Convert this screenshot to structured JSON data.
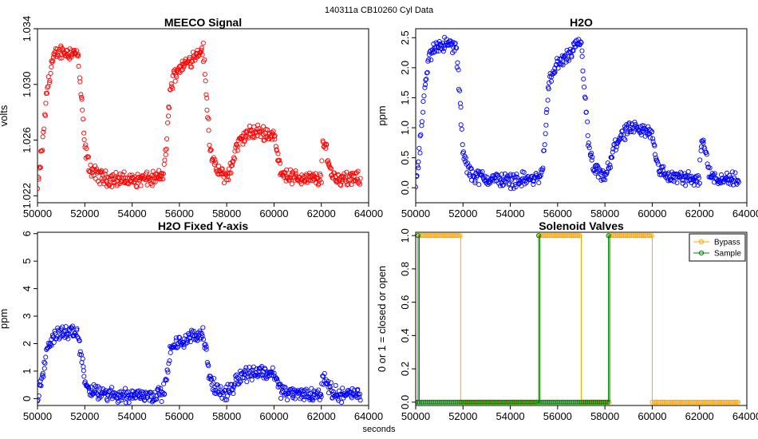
{
  "figure": {
    "suptitle": "140311a    CB10260   Cyl Data",
    "xlabel": "seconds"
  },
  "chart_data": [
    {
      "type": "scatter",
      "title": "MEECO Signal",
      "xlabel": "",
      "ylabel": "volts",
      "color": "#ff0000",
      "xlim": [
        50000,
        64000
      ],
      "ylim": [
        1.0215,
        1.034
      ],
      "xticks": [
        50000,
        52000,
        54000,
        56000,
        58000,
        60000,
        62000,
        64000
      ],
      "yticks": [
        1.022,
        1.026,
        1.03,
        1.034
      ],
      "ytick_labels": [
        "1.022",
        "1.026",
        "1.030",
        "1.034"
      ],
      "x": [
        50000,
        50200,
        50400,
        50600,
        50800,
        51000,
        51200,
        51500,
        51700,
        51850,
        52000,
        52200,
        52500,
        53000,
        53500,
        54000,
        54500,
        55000,
        55300,
        55450,
        55600,
        55800,
        56000,
        56300,
        56600,
        56900,
        57000,
        57150,
        57300,
        57500,
        57800,
        58000,
        58200,
        58400,
        58700,
        59000,
        59300,
        59600,
        60000,
        60150,
        60300,
        60600,
        61000,
        61500,
        62000,
        62050,
        62200,
        62350,
        62500,
        62700,
        63000,
        63300,
        63650
      ],
      "y": [
        1.0225,
        1.0255,
        1.0295,
        1.0315,
        1.0322,
        1.0324,
        1.0323,
        1.0323,
        1.0322,
        1.029,
        1.0255,
        1.024,
        1.0235,
        1.0232,
        1.0232,
        1.0231,
        1.0232,
        1.0232,
        1.0235,
        1.0255,
        1.0295,
        1.0308,
        1.0312,
        1.0315,
        1.032,
        1.0325,
        1.0325,
        1.029,
        1.0255,
        1.024,
        1.0235,
        1.0234,
        1.024,
        1.0255,
        1.0262,
        1.0265,
        1.0266,
        1.0265,
        1.0264,
        1.0248,
        1.0238,
        1.0234,
        1.0233,
        1.0232,
        1.0232,
        1.0255,
        1.0256,
        1.024,
        1.0234,
        1.0233,
        1.0232,
        1.0232,
        1.0232
      ]
    },
    {
      "type": "scatter",
      "title": "H2O",
      "xlabel": "",
      "ylabel": "ppm",
      "color": "#0000ff",
      "xlim": [
        50000,
        64000
      ],
      "ylim": [
        -0.25,
        2.65
      ],
      "xticks": [
        50000,
        52000,
        54000,
        56000,
        58000,
        60000,
        62000,
        64000
      ],
      "yticks": [
        0.0,
        0.5,
        1.0,
        1.5,
        2.0,
        2.5
      ],
      "ytick_labels": [
        "0.0",
        "0.5",
        "1.0",
        "1.5",
        "2.0",
        "2.5"
      ],
      "x": [
        50000,
        50200,
        50400,
        50600,
        50800,
        51000,
        51200,
        51500,
        51700,
        51850,
        52000,
        52200,
        52500,
        53000,
        53500,
        54000,
        54500,
        55000,
        55300,
        55450,
        55600,
        55800,
        56000,
        56300,
        56600,
        56900,
        57000,
        57150,
        57300,
        57500,
        57800,
        58000,
        58200,
        58400,
        58700,
        59000,
        59300,
        59600,
        60000,
        60150,
        60300,
        60600,
        61000,
        61500,
        62000,
        62050,
        62200,
        62350,
        62500,
        62700,
        63000,
        63300,
        63650
      ],
      "y": [
        0.05,
        0.8,
        1.7,
        2.2,
        2.35,
        2.4,
        2.38,
        2.38,
        2.35,
        1.6,
        0.6,
        0.3,
        0.2,
        0.15,
        0.14,
        0.12,
        0.14,
        0.14,
        0.2,
        0.7,
        1.65,
        1.95,
        2.05,
        2.15,
        2.25,
        2.4,
        2.4,
        1.6,
        0.7,
        0.35,
        0.2,
        0.18,
        0.35,
        0.7,
        0.88,
        0.95,
        0.97,
        0.95,
        0.92,
        0.55,
        0.3,
        0.2,
        0.17,
        0.15,
        0.15,
        0.7,
        0.75,
        0.35,
        0.2,
        0.17,
        0.15,
        0.14,
        0.14
      ]
    },
    {
      "type": "scatter",
      "title": "H2O Fixed Y-axis",
      "xlabel": "",
      "ylabel": "ppm",
      "color": "#0000ff",
      "xlim": [
        50000,
        64000
      ],
      "ylim": [
        -0.25,
        6.05
      ],
      "xticks": [
        50000,
        52000,
        54000,
        56000,
        58000,
        60000,
        62000,
        64000
      ],
      "yticks": [
        0,
        1,
        2,
        3,
        4,
        5,
        6
      ],
      "ytick_labels": [
        "0",
        "1",
        "2",
        "3",
        "4",
        "5",
        "6"
      ],
      "x": [
        50000,
        50200,
        50400,
        50600,
        50800,
        51000,
        51200,
        51500,
        51700,
        51850,
        52000,
        52200,
        52500,
        53000,
        53500,
        54000,
        54500,
        55000,
        55300,
        55450,
        55600,
        55800,
        56000,
        56300,
        56600,
        56900,
        57000,
        57150,
        57300,
        57500,
        57800,
        58000,
        58200,
        58400,
        58700,
        59000,
        59300,
        59600,
        60000,
        60150,
        60300,
        60600,
        61000,
        61500,
        62000,
        62050,
        62200,
        62350,
        62500,
        62700,
        63000,
        63300,
        63650
      ],
      "y": [
        0.05,
        0.8,
        1.7,
        2.2,
        2.35,
        2.4,
        2.38,
        2.38,
        2.35,
        1.6,
        0.6,
        0.3,
        0.2,
        0.15,
        0.14,
        0.12,
        0.14,
        0.14,
        0.2,
        0.7,
        1.65,
        1.95,
        2.05,
        2.15,
        2.25,
        2.4,
        2.4,
        1.6,
        0.7,
        0.35,
        0.2,
        0.18,
        0.35,
        0.7,
        0.88,
        0.95,
        0.97,
        0.95,
        0.92,
        0.55,
        0.3,
        0.2,
        0.17,
        0.15,
        0.15,
        0.7,
        0.75,
        0.35,
        0.2,
        0.17,
        0.15,
        0.14,
        0.14
      ]
    },
    {
      "type": "line",
      "title": "Solenoid Valves",
      "xlabel": "",
      "ylabel": "0 or 1 = closed or open",
      "xlim": [
        50000,
        64000
      ],
      "ylim": [
        -0.02,
        1.02
      ],
      "xticks": [
        50000,
        52000,
        54000,
        56000,
        58000,
        60000,
        62000,
        64000
      ],
      "yticks": [
        0.0,
        0.2,
        0.4,
        0.6,
        0.8,
        1.0
      ],
      "ytick_labels": [
        "0.0",
        "0.2",
        "0.4",
        "0.6",
        "0.8",
        "1.0"
      ],
      "legend_position": "top-right",
      "series": [
        {
          "name": "Bypass",
          "color": "#ffa500",
          "x": [
            50100,
            51900,
            51900,
            55250,
            55250,
            57000,
            57000,
            58200,
            58200,
            60000,
            60000,
            63700
          ],
          "y": [
            1,
            1,
            0,
            0,
            1,
            1,
            0,
            0,
            1,
            1,
            0,
            0
          ]
        },
        {
          "name": "Sample",
          "color": "#008000",
          "x": [
            50000,
            50100,
            50100,
            50150,
            50150,
            55200,
            55200,
            55250,
            55250,
            58150,
            58150,
            58200,
            58200
          ],
          "y": [
            0,
            0,
            1,
            1,
            0,
            0,
            1,
            1,
            0,
            0,
            1,
            1,
            0
          ]
        }
      ]
    }
  ]
}
